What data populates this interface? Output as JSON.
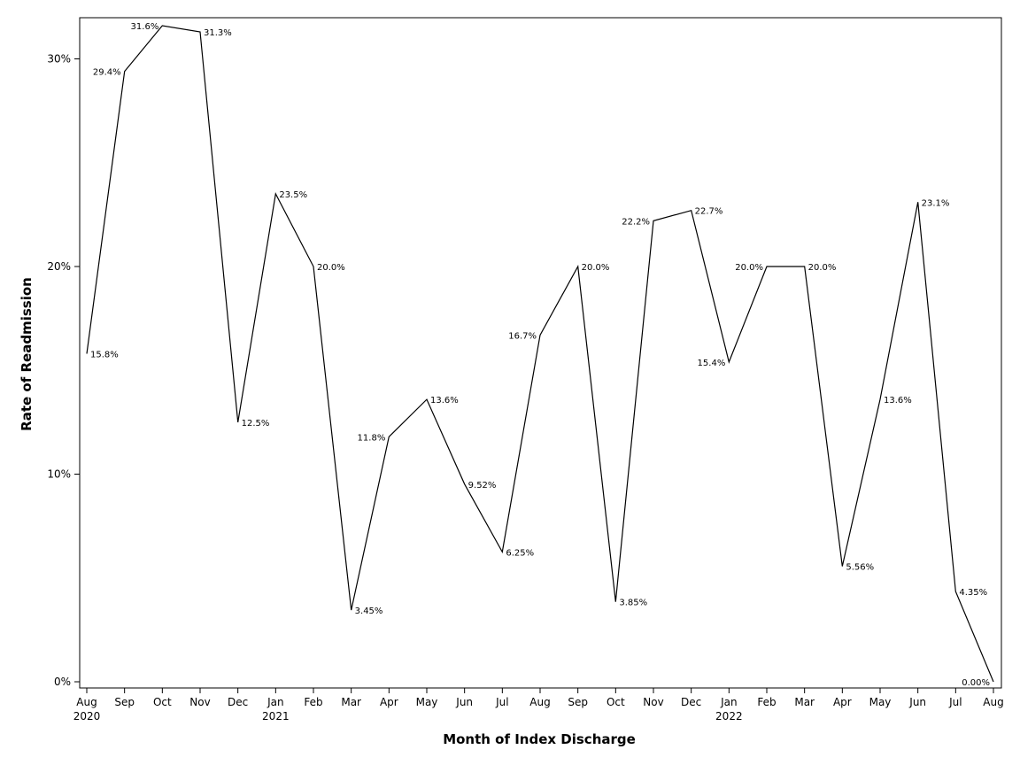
{
  "chart_data": {
    "type": "line",
    "xlabel": "Month of Index Discharge",
    "ylabel": "Rate of Readmission",
    "ylim": [
      0,
      0.32
    ],
    "yticks": [
      0,
      0.1,
      0.2,
      0.3
    ],
    "ytick_labels": [
      "0%",
      "10%",
      "20%",
      "30%"
    ],
    "grid": false,
    "legend": "none",
    "line_color": "#000000",
    "x": [
      "2020-08",
      "2020-09",
      "2020-10",
      "2020-11",
      "2020-12",
      "2021-01",
      "2021-02",
      "2021-03",
      "2021-04",
      "2021-05",
      "2021-06",
      "2021-07",
      "2021-08",
      "2021-09",
      "2021-10",
      "2021-11",
      "2021-12",
      "2022-01",
      "2022-02",
      "2022-03",
      "2022-04",
      "2022-05",
      "2022-06",
      "2022-07",
      "2022-08"
    ],
    "month_labels": [
      "Aug",
      "Sep",
      "Oct",
      "Nov",
      "Dec",
      "Jan",
      "Feb",
      "Mar",
      "Apr",
      "May",
      "Jun",
      "Jul",
      "Aug",
      "Sep",
      "Oct",
      "Nov",
      "Dec",
      "Jan",
      "Feb",
      "Mar",
      "Apr",
      "May",
      "Jun",
      "Jul",
      "Aug"
    ],
    "year_labels": [
      "2020",
      "",
      "",
      "",
      "",
      "2021",
      "",
      "",
      "",
      "",
      "",
      "",
      "",
      "",
      "",
      "",
      "",
      "2022",
      "",
      "",
      "",
      "",
      "",
      "",
      ""
    ],
    "values": [
      0.158,
      0.294,
      0.316,
      0.313,
      0.125,
      0.235,
      0.2,
      0.0345,
      0.118,
      0.136,
      0.0952,
      0.0625,
      0.167,
      0.2,
      0.0385,
      0.222,
      0.227,
      0.154,
      0.2,
      0.2,
      0.0556,
      0.136,
      0.231,
      0.0435,
      0.0
    ],
    "value_labels": [
      "15.8%",
      "29.4%",
      "31.6%",
      "31.3%",
      "12.5%",
      "23.5%",
      "20.0%",
      "3.45%",
      "11.8%",
      "13.6%",
      "9.52%",
      "6.25%",
      "16.7%",
      "20.0%",
      "3.85%",
      "22.2%",
      "22.7%",
      "15.4%",
      "20.0%",
      "20.0%",
      "5.56%",
      "13.6%",
      "23.1%",
      "4.35%",
      "0.00%"
    ],
    "label_side": [
      "right",
      "left",
      "left",
      "right",
      "right",
      "right",
      "right",
      "right",
      "left",
      "right",
      "right",
      "right",
      "left",
      "right",
      "right",
      "left",
      "right",
      "left",
      "left",
      "right",
      "right",
      "right",
      "right",
      "right",
      "left"
    ]
  }
}
